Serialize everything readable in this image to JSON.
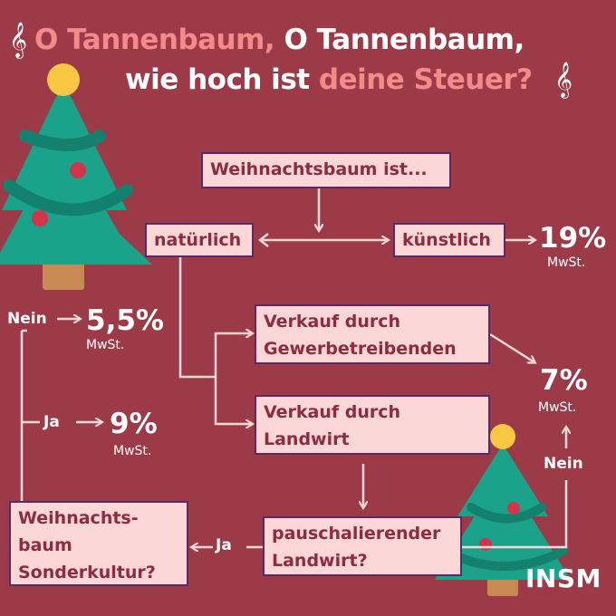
{
  "title": {
    "line1_part1": "O Tannenbaum,",
    "line1_part2": "O Tannenbaum,",
    "line2_part1": "wie hoch ist",
    "line2_part2": "deine Steuer?",
    "clef_left": "𝄞",
    "clef_right": "𝄞"
  },
  "nodes": {
    "start": "Weihnachtsbaum ist...",
    "natural": "natürlich",
    "artificial": "künstlich",
    "sale_business_line1": "Verkauf durch",
    "sale_business_line2": "Gewerbetreibenden",
    "sale_farmer_line1": "Verkauf durch",
    "sale_farmer_line2": "Landwirt",
    "flat_rate_line1": "pauschalierender",
    "flat_rate_line2": "Landwirt?",
    "special_crop_line1": "Weihnachts-",
    "special_crop_line2": "baum",
    "special_crop_line3": "Sonderkultur?"
  },
  "outcomes": {
    "artificial_pct": "19%",
    "artificial_unit": "MwSt.",
    "business_pct": "7%",
    "business_unit": "MwSt.",
    "nein_pct": "5,5%",
    "nein_unit": "MwSt.",
    "ja_pct": "9%",
    "ja_unit": "MwSt."
  },
  "edge_labels": {
    "nein_left": "Nein",
    "ja_left": "Ja",
    "ja_bottom": "Ja",
    "nein_right": "Nein"
  },
  "brand": "INSM",
  "colors": {
    "background": "#9c3a48",
    "box_fill": "#fbd7d7",
    "box_border": "#5b2a66",
    "box_text": "#8f2b3c",
    "accent_text": "#f58a8a",
    "connector": "#fbd7d7",
    "tree_green": "#1aa38a",
    "tree_dark": "#14806e",
    "ornament_red": "#d1344b",
    "star_yellow": "#f7c744",
    "trunk": "#c88a52"
  }
}
